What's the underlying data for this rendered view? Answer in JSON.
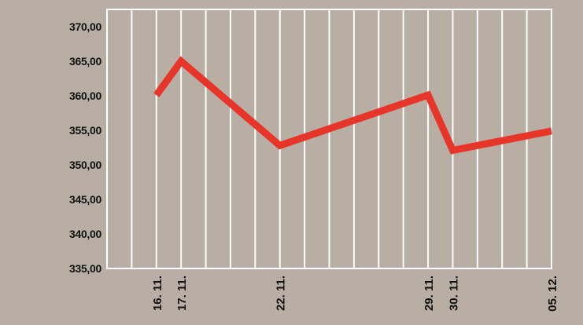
{
  "colors": {
    "background": "#b8aea4",
    "grid": "#ffffff",
    "line": "#e8352a",
    "text": "#111111"
  },
  "chart_data": {
    "type": "line",
    "title": "",
    "xlabel": "",
    "ylabel": "",
    "ylim": [
      335,
      372.5
    ],
    "yticks": [
      "335,00",
      "340,00",
      "345,00",
      "350,00",
      "355,00",
      "360,00",
      "365,00",
      "370,00"
    ],
    "ytick_values": [
      335,
      340,
      345,
      350,
      355,
      360,
      365,
      370
    ],
    "x_labels": [
      "16. 11.",
      "17. 11.",
      "22. 11.",
      "29. 11.",
      "30. 11.",
      "05. 12."
    ],
    "gridline_count": 18,
    "grid": true,
    "series": [
      {
        "points": [
          {
            "x": "16. 11.",
            "y": 360.1
          },
          {
            "x": "17. 11.",
            "y": 365.0
          },
          {
            "x": "22. 11.",
            "y": 352.8
          },
          {
            "x": "29. 11.",
            "y": 360.1
          },
          {
            "x": "30. 11.",
            "y": 352.1
          },
          {
            "x": "05. 12.",
            "y": 354.9
          }
        ]
      }
    ]
  }
}
